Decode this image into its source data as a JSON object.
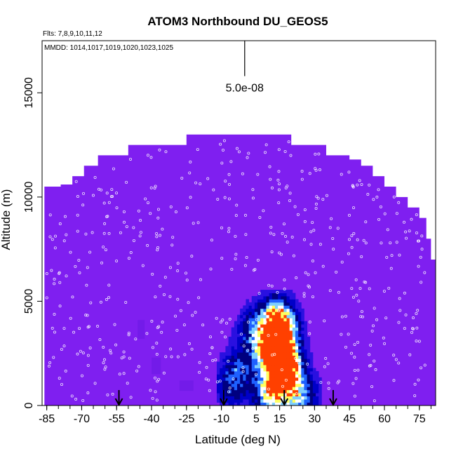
{
  "chart_data": {
    "type": "heatmap",
    "title": "ATOM3 Northbound DU_GEOS5",
    "flights_note": "Flts: 7,8,9,10,11,12",
    "dates_note": "MMDD: 1014,1017,1019,1020,1023,1025",
    "xlabel": "Latitude (deg N)",
    "ylabel": "Altitude (m)",
    "xlim": [
      -87,
      82
    ],
    "ylim": [
      0,
      17500
    ],
    "x_ticks": [
      -85,
      -70,
      -55,
      -40,
      -25,
      -10,
      5,
      15,
      30,
      45,
      60,
      75
    ],
    "y_ticks": [
      0,
      5000,
      10000,
      15000
    ],
    "scale_bar_label": "5.0e-08",
    "scale_bar": {
      "x": 0,
      "y_top": 17500,
      "y_bottom": 15800
    },
    "arrow_latitudes": [
      -54,
      -9,
      17,
      38
    ],
    "background_color": "#7f1ff0",
    "plume_colors": [
      "#2a10e0",
      "#0000c8",
      "#000080",
      "#1e60ff",
      "#7fd0ff",
      "#ffffff",
      "#ffff60",
      "#ff4000"
    ],
    "coverage_top_altitude": [
      [
        -86,
        10500
      ],
      [
        -83,
        10500
      ],
      [
        -79,
        10600
      ],
      [
        -74,
        11000
      ],
      [
        -69,
        11500
      ],
      [
        -63,
        12000
      ],
      [
        -55,
        12000
      ],
      [
        -50,
        12500
      ],
      [
        -40,
        12500
      ],
      [
        -30,
        12500
      ],
      [
        -25,
        13000
      ],
      [
        -10,
        13000
      ],
      [
        5,
        13000
      ],
      [
        10,
        13000
      ],
      [
        20,
        12500
      ],
      [
        35,
        12000
      ],
      [
        45,
        11800
      ],
      [
        50,
        11500
      ],
      [
        55,
        11000
      ],
      [
        60,
        10500
      ],
      [
        65,
        10000
      ],
      [
        70,
        9500
      ],
      [
        75,
        9000
      ],
      [
        78,
        8000
      ],
      [
        80,
        7000
      ],
      [
        82,
        6000
      ]
    ],
    "plume_intensity": [
      {
        "lat": 15,
        "alt": 3600,
        "value": 1.0
      },
      {
        "lat": 15,
        "alt": 2400,
        "value": 0.9
      },
      {
        "lat": 17,
        "alt": 1800,
        "value": 0.85
      },
      {
        "lat": 13,
        "alt": 1200,
        "value": 0.7
      },
      {
        "lat": 12,
        "alt": 4000,
        "value": 0.6
      },
      {
        "lat": 8,
        "alt": 2600,
        "value": 0.5
      },
      {
        "lat": 3,
        "alt": 3500,
        "value": 0.4
      },
      {
        "lat": -3,
        "alt": 1600,
        "value": 0.35
      },
      {
        "lat": -7,
        "alt": 800,
        "value": 0.3
      },
      {
        "lat": 20,
        "alt": 600,
        "value": 0.45
      },
      {
        "lat": 25,
        "alt": 300,
        "value": 0.35
      },
      {
        "lat": 10,
        "alt": 300,
        "value": 0.6
      }
    ]
  }
}
